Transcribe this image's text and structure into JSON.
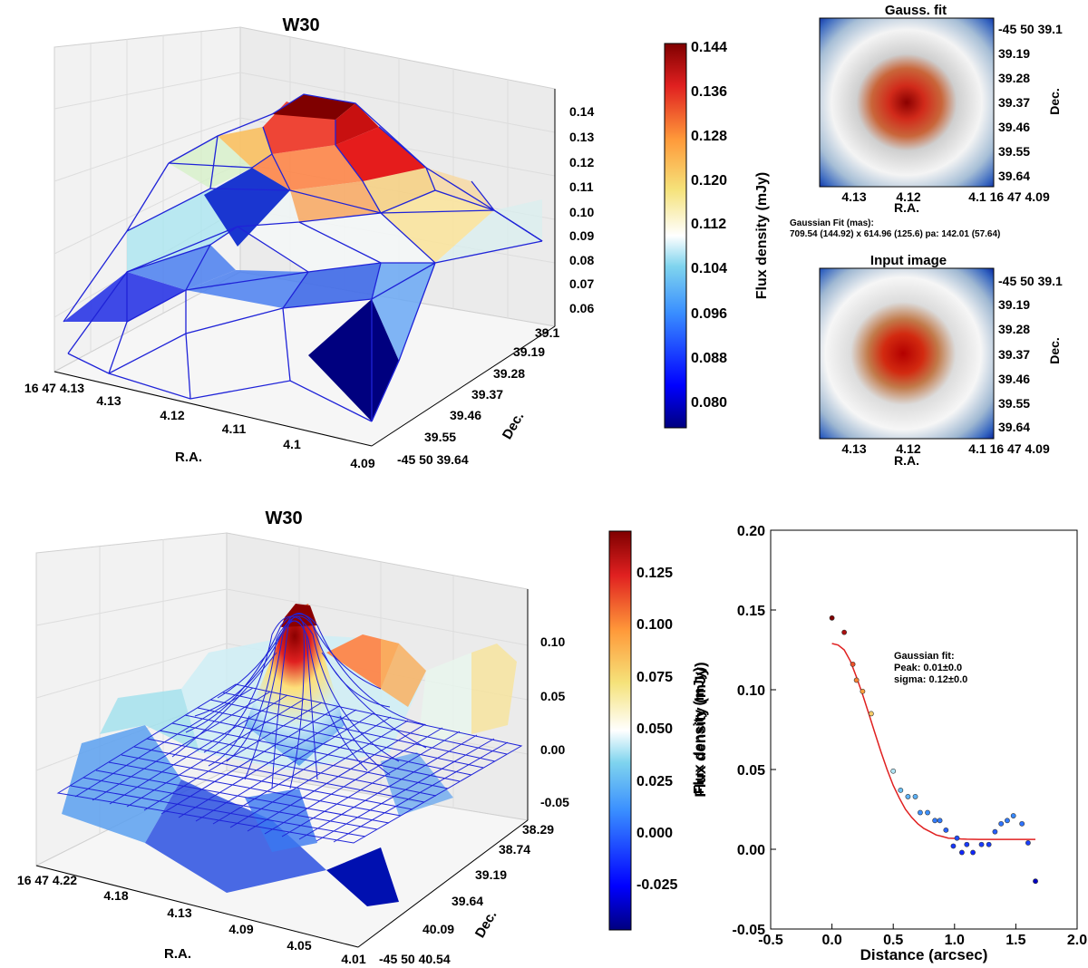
{
  "top_3d": {
    "title": "W30",
    "xlabel": "R.A.",
    "ylabel": "Dec.",
    "x_ticks": [
      "16 47 4.13",
      "4.13",
      "4.12",
      "4.11",
      "4.1",
      "4.09"
    ],
    "y_ticks": [
      "-45 50 39.64",
      "39.55",
      "39.46",
      "39.37",
      "39.28",
      "39.19",
      "39.1"
    ],
    "z_ticks": [
      "0.06",
      "0.07",
      "0.08",
      "0.09",
      "0.10",
      "0.11",
      "0.12",
      "0.13",
      "0.14"
    ]
  },
  "top_colorbar": {
    "label": "Flux density (mJy)",
    "ticks": [
      "0.080",
      "0.088",
      "0.096",
      "0.104",
      "0.112",
      "0.120",
      "0.128",
      "0.136",
      "0.144"
    ]
  },
  "gauss_fit_panel": {
    "title": "Gauss. fit",
    "xlabel": "R.A.",
    "ylabel": "Dec.",
    "x_ticks": [
      "4.13",
      "4.12",
      "4.1 16 47 4.09"
    ],
    "y_ticks": [
      "-45 50 39.1",
      "39.19",
      "39.28",
      "39.37",
      "39.46",
      "39.55",
      "39.64"
    ]
  },
  "fit_text": {
    "line1": "Gaussian Fit (mas):",
    "line2": "709.54 (144.92) x 614.96 (125.6) pa: 142.01 (57.64)"
  },
  "input_image_panel": {
    "title": "Input image",
    "xlabel": "R.A.",
    "ylabel": "Dec.",
    "x_ticks": [
      "4.13",
      "4.12",
      "4.1 16 47 4.09"
    ],
    "y_ticks": [
      "-45 50 39.1",
      "39.19",
      "39.28",
      "39.37",
      "39.46",
      "39.55",
      "39.64"
    ]
  },
  "bottom_3d": {
    "title": "W30",
    "xlabel": "R.A.",
    "ylabel": "Dec.",
    "x_ticks": [
      "16 47 4.22",
      "4.18",
      "4.13",
      "4.09",
      "4.05",
      "4.01"
    ],
    "y_ticks": [
      "-45 50 40.54",
      "40.09",
      "39.64",
      "39.19",
      "38.74",
      "38.29"
    ],
    "z_ticks": [
      "-0.05",
      "0.00",
      "0.05",
      "0.10"
    ]
  },
  "bottom_colorbar": {
    "label": "Flux density (mJy)",
    "ticks": [
      "-0.025",
      "0.000",
      "0.025",
      "0.050",
      "0.075",
      "0.100",
      "0.125"
    ]
  },
  "profile_text": {
    "line1": "Gaussian fit:",
    "line2": "Peak: 0.01±0.0",
    "line3": "sigma: 0.12±0.0"
  },
  "chart_data": {
    "type": "scatter",
    "title": "",
    "xlabel": "Distance (arcsec)",
    "ylabel": "Flux density (mJy)",
    "xlim": [
      -0.5,
      2.0
    ],
    "ylim": [
      -0.05,
      0.2
    ],
    "x_ticks": [
      -0.5,
      0.0,
      0.5,
      1.0,
      1.5,
      2.0
    ],
    "y_ticks": [
      -0.05,
      0.0,
      0.05,
      0.1,
      0.15,
      0.2
    ],
    "points": {
      "x": [
        0.0,
        0.1,
        0.17,
        0.2,
        0.25,
        0.32,
        0.5,
        0.56,
        0.62,
        0.68,
        0.72,
        0.78,
        0.84,
        0.88,
        0.93,
        0.99,
        1.02,
        1.06,
        1.1,
        1.15,
        1.22,
        1.28,
        1.33,
        1.38,
        1.43,
        1.48,
        1.55,
        1.6,
        1.66
      ],
      "y": [
        0.145,
        0.136,
        0.116,
        0.106,
        0.099,
        0.085,
        0.049,
        0.037,
        0.033,
        0.033,
        0.023,
        0.023,
        0.018,
        0.018,
        0.012,
        0.002,
        0.007,
        -0.002,
        0.003,
        -0.002,
        0.003,
        0.003,
        0.011,
        0.016,
        0.018,
        0.021,
        0.016,
        0.004,
        -0.02
      ]
    },
    "fit_curve": {
      "name": "Gaussian fit",
      "color": "#e02020",
      "x": [
        0.0,
        0.05,
        0.1,
        0.15,
        0.2,
        0.25,
        0.3,
        0.35,
        0.4,
        0.45,
        0.5,
        0.55,
        0.6,
        0.65,
        0.7,
        0.75,
        0.8,
        0.85,
        0.9,
        0.95,
        1.0,
        1.05,
        1.1,
        1.2,
        1.3,
        1.4,
        1.5,
        1.6,
        1.66
      ],
      "y": [
        0.129,
        0.128,
        0.125,
        0.118,
        0.108,
        0.097,
        0.085,
        0.073,
        0.061,
        0.05,
        0.04,
        0.032,
        0.025,
        0.02,
        0.016,
        0.013,
        0.011,
        0.009,
        0.008,
        0.007,
        0.0068,
        0.0065,
        0.0063,
        0.0062,
        0.0062,
        0.0062,
        0.0062,
        0.0062,
        0.0062
      ]
    }
  }
}
